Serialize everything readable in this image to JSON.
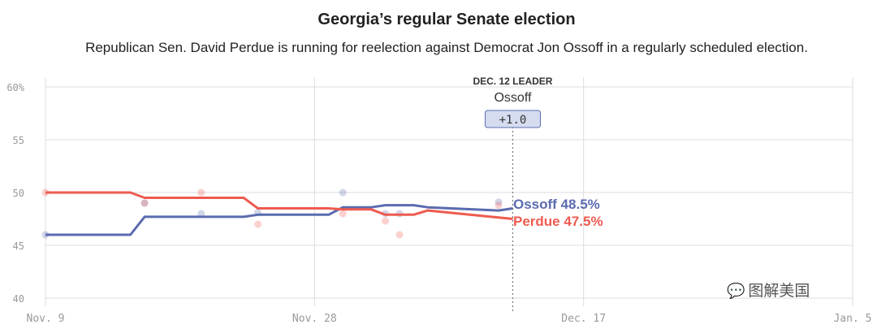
{
  "chart_data": {
    "type": "line",
    "title": "Georgia’s regular Senate election",
    "subtitle": "Republican Sen. David Perdue is running for reelection against Democrat Jon Ossoff in a regularly scheduled election.",
    "xlabel": "",
    "ylabel": "",
    "x_axis": {
      "type": "date",
      "range": [
        "2020-11-09",
        "2021-01-05"
      ],
      "ticks": [
        {
          "date": "2020-11-09",
          "label": "Nov. 9"
        },
        {
          "date": "2020-11-28",
          "label": "Nov. 28"
        },
        {
          "date": "2020-12-17",
          "label": "Dec. 17"
        },
        {
          "date": "2021-01-05",
          "label": "Jan. 5"
        }
      ]
    },
    "y_axis": {
      "range": [
        40,
        60
      ],
      "ticks": [
        {
          "value": 40,
          "label": "40"
        },
        {
          "value": 45,
          "label": "45"
        },
        {
          "value": 50,
          "label": "50"
        },
        {
          "value": 55,
          "label": "55"
        },
        {
          "value": 60,
          "label": "60%"
        }
      ]
    },
    "grid": true,
    "series": [
      {
        "name": "Ossoff",
        "color": "#5b6bb0",
        "points": [
          {
            "date": "2020-11-09",
            "value": 46.0
          },
          {
            "date": "2020-11-15",
            "value": 46.0
          },
          {
            "date": "2020-11-16",
            "value": 47.7
          },
          {
            "date": "2020-11-23",
            "value": 47.7
          },
          {
            "date": "2020-11-24",
            "value": 47.9
          },
          {
            "date": "2020-11-29",
            "value": 47.9
          },
          {
            "date": "2020-11-30",
            "value": 48.6
          },
          {
            "date": "2020-12-02",
            "value": 48.6
          },
          {
            "date": "2020-12-03",
            "value": 48.8
          },
          {
            "date": "2020-12-05",
            "value": 48.8
          },
          {
            "date": "2020-12-06",
            "value": 48.6
          },
          {
            "date": "2020-12-11",
            "value": 48.3
          },
          {
            "date": "2020-12-12",
            "value": 48.5
          }
        ]
      },
      {
        "name": "Perdue",
        "color": "#ee5b50",
        "points": [
          {
            "date": "2020-11-09",
            "value": 50.0
          },
          {
            "date": "2020-11-15",
            "value": 50.0
          },
          {
            "date": "2020-11-16",
            "value": 49.5
          },
          {
            "date": "2020-11-23",
            "value": 49.5
          },
          {
            "date": "2020-11-24",
            "value": 48.5
          },
          {
            "date": "2020-11-29",
            "value": 48.5
          },
          {
            "date": "2020-11-30",
            "value": 48.4
          },
          {
            "date": "2020-12-02",
            "value": 48.4
          },
          {
            "date": "2020-12-03",
            "value": 47.9
          },
          {
            "date": "2020-12-05",
            "value": 47.9
          },
          {
            "date": "2020-12-06",
            "value": 48.3
          },
          {
            "date": "2020-12-12",
            "value": 47.5
          }
        ]
      }
    ],
    "polls": [
      {
        "candidate": "Ossoff",
        "date": "2020-11-09",
        "value": 46
      },
      {
        "candidate": "Ossoff",
        "date": "2020-11-16",
        "value": 49
      },
      {
        "candidate": "Ossoff",
        "date": "2020-11-20",
        "value": 48
      },
      {
        "candidate": "Ossoff",
        "date": "2020-11-24",
        "value": 48.1
      },
      {
        "candidate": "Ossoff",
        "date": "2020-11-30",
        "value": 50
      },
      {
        "candidate": "Ossoff",
        "date": "2020-12-03",
        "value": 48
      },
      {
        "candidate": "Ossoff",
        "date": "2020-12-04",
        "value": 48
      },
      {
        "candidate": "Ossoff",
        "date": "2020-12-11",
        "value": 49.1
      },
      {
        "candidate": "Perdue",
        "date": "2020-11-09",
        "value": 50
      },
      {
        "candidate": "Perdue",
        "date": "2020-11-16",
        "value": 49
      },
      {
        "candidate": "Perdue",
        "date": "2020-11-20",
        "value": 50
      },
      {
        "candidate": "Perdue",
        "date": "2020-11-24",
        "value": 47
      },
      {
        "candidate": "Perdue",
        "date": "2020-11-30",
        "value": 48
      },
      {
        "candidate": "Perdue",
        "date": "2020-12-03",
        "value": 47.3
      },
      {
        "candidate": "Perdue",
        "date": "2020-12-04",
        "value": 46
      },
      {
        "candidate": "Perdue",
        "date": "2020-12-11",
        "value": 48.8
      }
    ],
    "end_labels": [
      {
        "text": "Ossoff 48.5%",
        "color": "#5b6bb0"
      },
      {
        "text": "Perdue 47.5%",
        "color": "#ee5b50"
      }
    ],
    "annotation": {
      "date": "2020-12-12",
      "heading": "DEC. 12 LEADER",
      "leader": "Ossoff",
      "margin": "+1.0"
    }
  },
  "watermark": {
    "icon": "wechat-icon",
    "text": "图解美国"
  }
}
